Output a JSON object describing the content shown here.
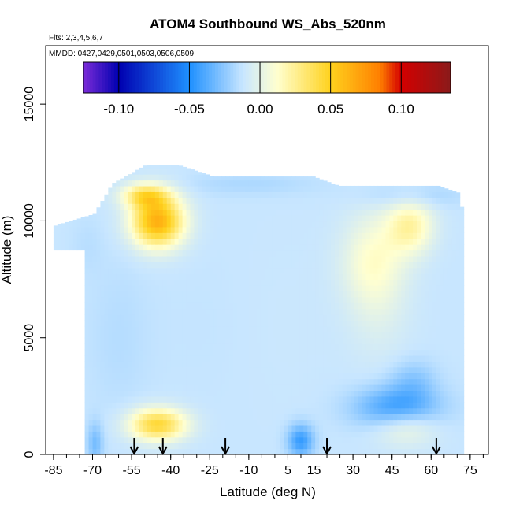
{
  "chart_data": {
    "type": "heatmap",
    "title": "ATOM4 Southbound WS_Abs_520nm",
    "flights_label": "Flts: 2,3,4,5,6,7",
    "dates_label": "MMDD: 0427,0429,0501,0503,0506,0509",
    "xlabel": "Latitude (deg N)",
    "ylabel": "Altitude (m)",
    "xlim": [
      -88,
      82
    ],
    "ylim": [
      0,
      17500
    ],
    "x_ticks": [
      -85,
      -70,
      -55,
      -40,
      -25,
      -10,
      5,
      15,
      30,
      45,
      60,
      75
    ],
    "x_tick_labels": [
      "-85",
      "-70",
      "-55",
      "-40",
      "-25",
      "-10",
      "5",
      "15",
      "30",
      "45",
      "60",
      "75"
    ],
    "x_minor_step": 5,
    "y_ticks": [
      0,
      5000,
      10000,
      15000
    ],
    "y_tick_labels": [
      "0",
      "5000",
      "10000",
      "15000"
    ],
    "colorbar": {
      "range": [
        -0.125,
        0.135
      ],
      "ticks": [
        -0.1,
        -0.05,
        0.0,
        0.05,
        0.1
      ],
      "tick_labels": [
        "-0.10",
        "-0.05",
        "0.00",
        "0.05",
        "0.10"
      ],
      "colors": [
        "#7a2cd8",
        "#0000b0",
        "#1e90ff",
        "#c8e6ff",
        "#ffffd0",
        "#ffd21e",
        "#ff7f00",
        "#d40000",
        "#8b1a1a"
      ]
    },
    "domain": {
      "lat_left": -73,
      "lat_right": 72,
      "top_profile": [
        [
          -85,
          9800
        ],
        [
          -70,
          10300
        ],
        [
          -63,
          11600
        ],
        [
          -50,
          12400
        ],
        [
          -38,
          12400
        ],
        [
          -24,
          11900
        ],
        [
          -14,
          11900
        ],
        [
          0,
          11900
        ],
        [
          14,
          11900
        ],
        [
          24,
          11500
        ],
        [
          34,
          11500
        ],
        [
          48,
          11500
        ],
        [
          62,
          11500
        ],
        [
          70,
          11200
        ],
        [
          72,
          10000
        ]
      ],
      "bottom": 0
    },
    "anomalies": [
      {
        "lat": -45,
        "alt": 10000,
        "rlat": 10,
        "ralt": 1100,
        "value": 0.065
      },
      {
        "lat": -50,
        "alt": 11100,
        "rlat": 9,
        "ralt": 500,
        "value": 0.03
      },
      {
        "lat": -45,
        "alt": 1300,
        "rlat": 11,
        "ralt": 700,
        "value": 0.045
      },
      {
        "lat": 47,
        "alt": 2000,
        "rlat": 16,
        "ralt": 900,
        "value": -0.045
      },
      {
        "lat": 53,
        "alt": 3200,
        "rlat": 9,
        "ralt": 900,
        "value": -0.025
      },
      {
        "lat": 10,
        "alt": 600,
        "rlat": 5,
        "ralt": 700,
        "value": -0.045
      },
      {
        "lat": -69,
        "alt": 500,
        "rlat": 3,
        "ralt": 900,
        "value": -0.03
      },
      {
        "lat": 52,
        "alt": 9800,
        "rlat": 9,
        "ralt": 1200,
        "value": 0.02
      },
      {
        "lat": 38,
        "alt": 8300,
        "rlat": 12,
        "ralt": 2000,
        "value": 0.012
      },
      {
        "lat": -10,
        "alt": 11600,
        "rlat": 26,
        "ralt": 500,
        "value": -0.018
      },
      {
        "lat": 52,
        "alt": 11100,
        "rlat": 18,
        "ralt": 500,
        "value": -0.022
      },
      {
        "lat": -38,
        "alt": 11900,
        "rlat": 10,
        "ralt": 300,
        "value": -0.012
      },
      {
        "lat": -72,
        "alt": 9000,
        "rlat": 6,
        "ralt": 1200,
        "value": -0.015
      },
      {
        "lat": 2,
        "alt": 5500,
        "rlat": 26,
        "ralt": 4200,
        "value": -0.011
      },
      {
        "lat": -25,
        "alt": 5500,
        "rlat": 20,
        "ralt": 3500,
        "value": -0.013
      },
      {
        "lat": -60,
        "alt": 5000,
        "rlat": 12,
        "ralt": 3500,
        "value": -0.016
      },
      {
        "lat": 40,
        "alt": 5800,
        "rlat": 12,
        "ralt": 2200,
        "value": -0.006
      },
      {
        "lat": 50,
        "alt": 1200,
        "rlat": 12,
        "ralt": 800,
        "value": 0.008
      },
      {
        "lat": -15,
        "alt": 1300,
        "rlat": 15,
        "ralt": 700,
        "value": -0.012
      }
    ],
    "profile_markers_lat": [
      -54,
      -43,
      -19,
      20,
      62
    ]
  }
}
